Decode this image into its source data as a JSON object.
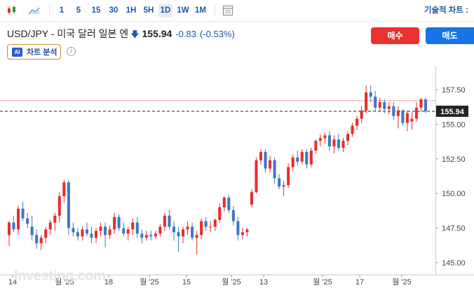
{
  "toolbar": {
    "intervals": [
      "1",
      "5",
      "15",
      "30",
      "1H",
      "5H",
      "1D",
      "1W",
      "1M"
    ],
    "active_interval": "1D",
    "right_label": "기술적 차트 :"
  },
  "header": {
    "pair": "USD/JPY - 미국 달러 일본 엔",
    "price": "155.94",
    "change": "-0.83",
    "change_pct": "(-0.53%)",
    "direction": "down"
  },
  "actions": {
    "buy_label": "매수",
    "sell_label": "매도"
  },
  "ai": {
    "badge": "AI",
    "label": "차트 분석"
  },
  "watermark": "Investing.com",
  "chart_data": {
    "type": "candlestick",
    "y_ticks": [
      "157.50",
      "155.00",
      "152.50",
      "150.00",
      "147.50",
      "145.00"
    ],
    "y_range": [
      144.4,
      158.7
    ],
    "current_price": "155.94",
    "reference_line": 156.7,
    "x_ticks": [
      "14",
      "월 '25",
      "18",
      "월 '25",
      "15",
      "월 '25",
      "13",
      "월 '25",
      "17",
      "월 '25"
    ],
    "colors": {
      "up": "#e52e2e",
      "down": "#3d78c2",
      "ref": "#f2a9a9",
      "current": "#222222"
    },
    "candles": [
      [
        147.0,
        148.0,
        146.2,
        147.9
      ],
      [
        147.9,
        148.4,
        147.2,
        147.4
      ],
      [
        147.4,
        149.1,
        147.0,
        148.9
      ],
      [
        148.9,
        149.4,
        148.0,
        148.2
      ],
      [
        148.2,
        148.6,
        147.5,
        147.8
      ],
      [
        147.6,
        148.4,
        146.6,
        147.0
      ],
      [
        147.0,
        147.4,
        146.0,
        146.4
      ],
      [
        146.4,
        147.0,
        145.9,
        146.8
      ],
      [
        146.8,
        147.6,
        146.4,
        147.4
      ],
      [
        147.4,
        148.1,
        147.0,
        147.9
      ],
      [
        147.9,
        148.6,
        147.3,
        148.4
      ],
      [
        148.4,
        150.1,
        147.9,
        149.8
      ],
      [
        149.8,
        151.0,
        149.3,
        150.8
      ],
      [
        150.8,
        151.0,
        147.0,
        147.5
      ],
      [
        147.5,
        147.9,
        146.9,
        147.2
      ],
      [
        147.2,
        147.5,
        146.6,
        146.9
      ],
      [
        146.9,
        147.6,
        146.6,
        147.4
      ],
      [
        147.4,
        147.9,
        146.9,
        147.1
      ],
      [
        147.1,
        147.6,
        146.4,
        146.8
      ],
      [
        146.8,
        147.5,
        146.4,
        147.3
      ],
      [
        147.3,
        147.9,
        146.9,
        147.6
      ],
      [
        147.6,
        147.9,
        146.1,
        147.0
      ],
      [
        147.0,
        147.7,
        146.7,
        147.4
      ],
      [
        147.4,
        148.6,
        147.1,
        148.3
      ],
      [
        148.3,
        148.5,
        147.3,
        147.5
      ],
      [
        147.5,
        147.9,
        146.9,
        147.1
      ],
      [
        147.1,
        147.6,
        146.6,
        147.4
      ],
      [
        147.4,
        148.2,
        147.0,
        147.9
      ],
      [
        147.9,
        148.3,
        146.8,
        147.1
      ],
      [
        147.1,
        147.4,
        146.4,
        146.8
      ],
      [
        146.8,
        147.3,
        146.6,
        147.0
      ],
      [
        147.0,
        147.3,
        146.6,
        146.9
      ],
      [
        146.9,
        147.3,
        146.7,
        147.1
      ],
      [
        147.1,
        147.8,
        146.9,
        147.6
      ],
      [
        147.6,
        148.6,
        147.3,
        148.4
      ],
      [
        148.4,
        148.8,
        147.4,
        147.6
      ],
      [
        147.6,
        148.0,
        146.6,
        147.2
      ],
      [
        147.2,
        147.6,
        145.8,
        146.9
      ],
      [
        146.9,
        147.6,
        146.4,
        147.4
      ],
      [
        147.4,
        148.0,
        147.0,
        147.6
      ],
      [
        147.6,
        147.9,
        146.6,
        146.8
      ],
      [
        146.8,
        147.3,
        145.6,
        147.0
      ],
      [
        147.0,
        148.2,
        146.7,
        148.0
      ],
      [
        148.0,
        148.3,
        147.3,
        147.6
      ],
      [
        147.6,
        148.0,
        147.2,
        147.6
      ],
      [
        147.6,
        148.2,
        147.3,
        148.1
      ],
      [
        148.1,
        149.3,
        147.9,
        149.0
      ],
      [
        149.0,
        149.8,
        148.7,
        149.7
      ],
      [
        149.7,
        149.9,
        148.6,
        148.8
      ],
      [
        148.8,
        149.1,
        147.7,
        148.0
      ],
      [
        148.0,
        148.3,
        146.6,
        147.0
      ],
      [
        147.0,
        147.5,
        146.7,
        147.2
      ],
      [
        147.2,
        147.5,
        146.9,
        147.4
      ],
      [
        149.2,
        150.3,
        149.0,
        150.1
      ],
      [
        150.1,
        152.6,
        150.0,
        152.4
      ],
      [
        152.4,
        153.2,
        152.1,
        153.0
      ],
      [
        153.0,
        153.2,
        151.5,
        151.8
      ],
      [
        151.8,
        152.7,
        151.5,
        152.4
      ],
      [
        152.4,
        152.6,
        150.7,
        151.1
      ],
      [
        151.1,
        151.4,
        150.3,
        150.5
      ],
      [
        150.5,
        150.9,
        149.8,
        150.6
      ],
      [
        150.6,
        152.2,
        150.4,
        151.9
      ],
      [
        151.9,
        152.8,
        151.6,
        152.6
      ],
      [
        152.6,
        153.1,
        152.0,
        152.3
      ],
      [
        152.3,
        153.2,
        152.1,
        153.0
      ],
      [
        153.0,
        153.2,
        151.8,
        152.1
      ],
      [
        152.1,
        153.3,
        151.9,
        153.1
      ],
      [
        153.1,
        153.9,
        152.9,
        153.8
      ],
      [
        153.8,
        154.3,
        153.4,
        154.0
      ],
      [
        154.0,
        154.4,
        153.6,
        154.2
      ],
      [
        154.2,
        154.5,
        153.1,
        153.4
      ],
      [
        153.4,
        154.2,
        152.9,
        153.9
      ],
      [
        153.9,
        154.3,
        153.1,
        153.3
      ],
      [
        153.3,
        154.0,
        153.0,
        153.8
      ],
      [
        153.8,
        154.5,
        153.5,
        154.3
      ],
      [
        154.3,
        155.1,
        154.1,
        154.9
      ],
      [
        154.9,
        155.6,
        154.6,
        155.4
      ],
      [
        155.4,
        156.3,
        155.1,
        156.0
      ],
      [
        156.0,
        157.8,
        155.8,
        157.3
      ],
      [
        157.3,
        157.8,
        156.6,
        157.0
      ],
      [
        157.0,
        157.4,
        155.9,
        156.2
      ],
      [
        156.2,
        156.9,
        155.9,
        156.6
      ],
      [
        156.6,
        156.8,
        155.8,
        156.1
      ],
      [
        156.1,
        156.6,
        155.7,
        156.3
      ],
      [
        156.3,
        156.6,
        155.3,
        155.6
      ],
      [
        155.6,
        156.3,
        154.7,
        156.0
      ],
      [
        156.0,
        156.1,
        154.9,
        155.1
      ],
      [
        155.1,
        156.0,
        154.5,
        155.8
      ],
      [
        155.2,
        155.9,
        154.6,
        155.4
      ],
      [
        155.4,
        156.6,
        155.2,
        156.2
      ],
      [
        156.2,
        156.9,
        155.9,
        156.8
      ],
      [
        156.8,
        156.9,
        155.8,
        155.94
      ]
    ]
  }
}
